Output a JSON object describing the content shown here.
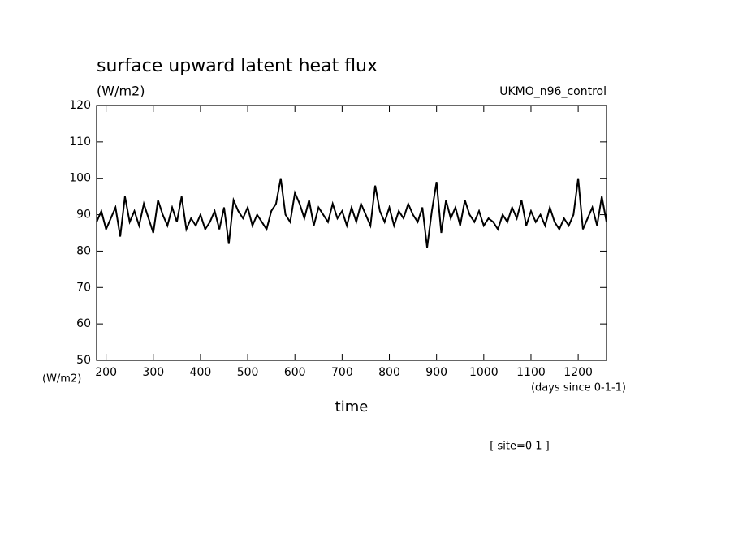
{
  "chart_data": {
    "type": "line",
    "title": "surface upward latent heat flux",
    "subtitle": "(W/m2)",
    "label_top_right": "UKMO_n96_control",
    "y_unit": "(W/m2)",
    "x_unit": "(days since 0-1-1)",
    "xlabel": "time",
    "annotation": "[ site=0 1 ]",
    "xlim": [
      180,
      1260
    ],
    "ylim": [
      50,
      120
    ],
    "xticks": [
      200,
      300,
      400,
      500,
      600,
      700,
      800,
      900,
      1000,
      1100,
      1200
    ],
    "yticks": [
      50,
      60,
      70,
      80,
      90,
      100,
      110,
      120
    ],
    "x": [
      180,
      190,
      200,
      210,
      220,
      230,
      240,
      250,
      260,
      270,
      280,
      290,
      300,
      310,
      320,
      330,
      340,
      350,
      360,
      370,
      380,
      390,
      400,
      410,
      420,
      430,
      440,
      450,
      460,
      470,
      480,
      490,
      500,
      510,
      520,
      530,
      540,
      550,
      560,
      570,
      580,
      590,
      600,
      610,
      620,
      630,
      640,
      650,
      660,
      670,
      680,
      690,
      700,
      710,
      720,
      730,
      740,
      750,
      760,
      770,
      780,
      790,
      800,
      810,
      820,
      830,
      840,
      850,
      860,
      870,
      880,
      890,
      900,
      910,
      920,
      930,
      940,
      950,
      960,
      970,
      980,
      990,
      1000,
      1010,
      1020,
      1030,
      1040,
      1050,
      1060,
      1070,
      1080,
      1090,
      1100,
      1110,
      1120,
      1130,
      1140,
      1150,
      1160,
      1170,
      1180,
      1190,
      1200,
      1210,
      1220,
      1230,
      1240,
      1250,
      1260
    ],
    "series": [
      {
        "color": "#000000",
        "values": [
          88,
          91,
          86,
          89,
          92,
          84,
          95,
          88,
          91,
          87,
          93,
          89,
          85,
          94,
          90,
          87,
          92,
          88,
          95,
          86,
          89,
          87,
          90,
          86,
          88,
          91,
          86,
          92,
          82,
          94,
          91,
          89,
          92,
          87,
          90,
          88,
          86,
          91,
          93,
          100,
          90,
          88,
          96,
          93,
          89,
          94,
          87,
          92,
          90,
          88,
          93,
          89,
          91,
          87,
          92,
          88,
          93,
          90,
          87,
          98,
          91,
          88,
          92,
          87,
          91,
          89,
          93,
          90,
          88,
          92,
          81,
          91,
          99,
          85,
          94,
          89,
          92,
          87,
          94,
          90,
          88,
          91,
          87,
          89,
          88,
          86,
          90,
          88,
          92,
          89,
          94,
          87,
          91,
          88,
          90,
          87,
          92,
          88,
          86,
          89,
          87,
          90,
          100,
          86,
          89,
          92,
          87,
          95,
          88
        ]
      }
    ]
  }
}
